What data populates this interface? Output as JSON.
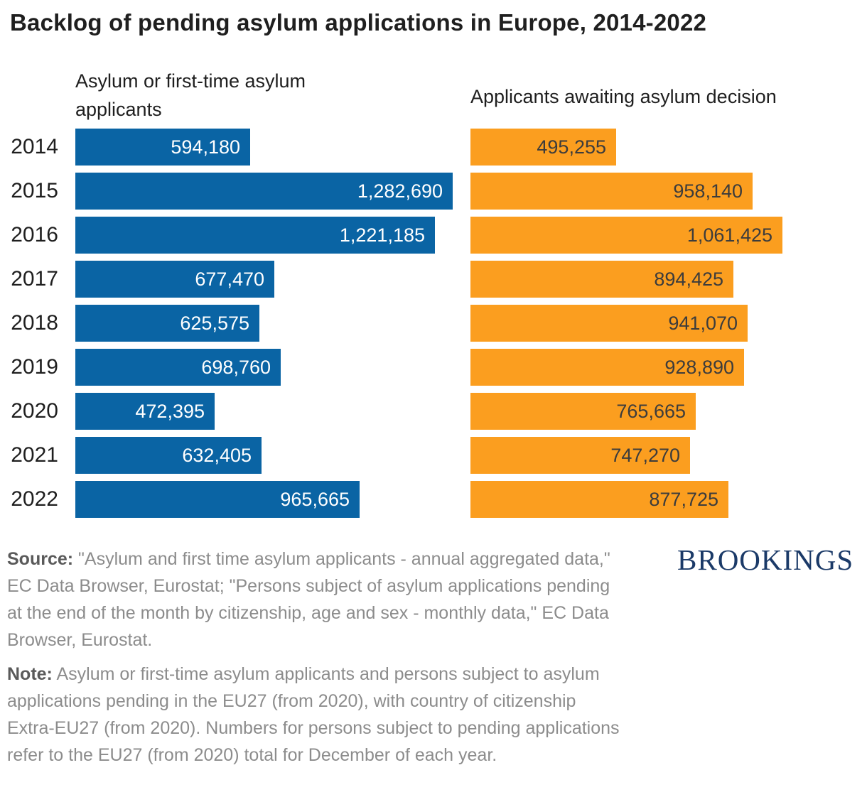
{
  "title": "Backlog of pending asylum applications in Europe, 2014-2022",
  "chart_data": {
    "type": "bar",
    "orientation": "horizontal",
    "title": "Backlog of pending asylum applications in Europe, 2014-2022",
    "categories": [
      "2014",
      "2015",
      "2016",
      "2017",
      "2018",
      "2019",
      "2020",
      "2021",
      "2022"
    ],
    "series": [
      {
        "name": "Asylum or first-time asylum applicants",
        "color": "#0A64A4",
        "values": [
          594180,
          1282690,
          1221185,
          677470,
          625575,
          698760,
          472395,
          632405,
          965665
        ],
        "labels": [
          "594,180",
          "1,282,690",
          "1,221,185",
          "677,470",
          "625,575",
          "698,760",
          "472,395",
          "632,405",
          "965,665"
        ]
      },
      {
        "name": "Applicants awaiting asylum decision",
        "color": "#FB9E1F",
        "values": [
          495255,
          958140,
          1061425,
          894425,
          941070,
          928890,
          765665,
          747270,
          877725
        ],
        "labels": [
          "495,255",
          "958,140",
          "1,061,425",
          "894,425",
          "941,070",
          "928,890",
          "765,665",
          "747,270",
          "877,725"
        ]
      }
    ],
    "xlim": [
      0,
      1282690
    ],
    "value_labels": "inside-end",
    "grid": false,
    "legend_position": "column-headers-above-each-panel"
  },
  "source": {
    "label": "Source:",
    "text": "\"Asylum and first time asylum applicants - annual aggregated data,\" EC Data Browser, Eurostat; \"Persons subject of asylum applications pending at the end of the month by citizenship, age and sex - monthly data,\" EC Data Browser, Eurostat."
  },
  "note": {
    "label": "Note:",
    "text": "Asylum or first-time asylum applicants and persons subject to asylum applications pending in the EU27 (from 2020), with country of citizenship Extra-EU27 (from 2020). Numbers for persons subject to pending applications refer to the EU27 (from 2020) total for December of each year."
  },
  "brand": {
    "logo_text": "BROOKINGS",
    "color": "#1B3A68"
  },
  "colors": {
    "applicants_bar": "#0A64A4",
    "pending_bar": "#FB9E1F",
    "title_text": "#1F1F1F",
    "year_text": "#1F1F1F",
    "value_on_blue": "#FFFFFF",
    "value_on_orange": "#3C3C3C",
    "footnote_text": "#8C8C8C",
    "footnote_label": "#5A5A5A",
    "background": "#FFFFFF"
  }
}
